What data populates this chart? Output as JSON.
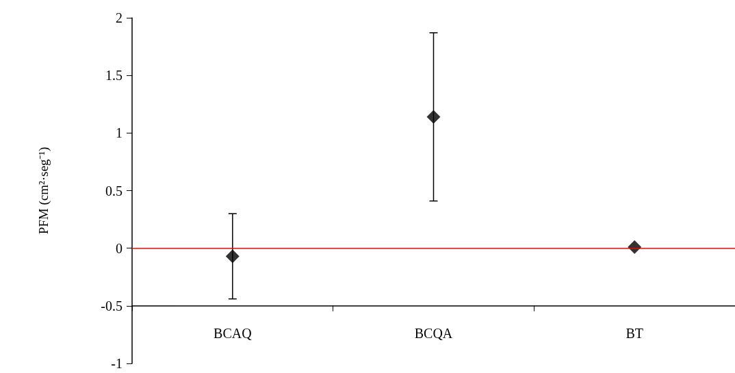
{
  "chart_data": {
    "type": "scatter",
    "ylabel": "PFM (cm²·seg⁻¹)",
    "categories": [
      "BCAQ",
      "BCQA",
      "BT"
    ],
    "series": [
      {
        "color": "#000000",
        "values": [
          -0.07,
          1.14,
          0.01
        ],
        "errors": [
          0.37,
          0.73,
          null
        ]
      }
    ],
    "ylim": [
      -1,
      2
    ],
    "yticks": [
      -1,
      -0.5,
      0,
      0.5,
      1,
      1.5,
      2
    ],
    "ref_lines": [
      {
        "axis": "y",
        "value": 0,
        "color": "#ff0000"
      }
    ],
    "marker": "diamond"
  }
}
